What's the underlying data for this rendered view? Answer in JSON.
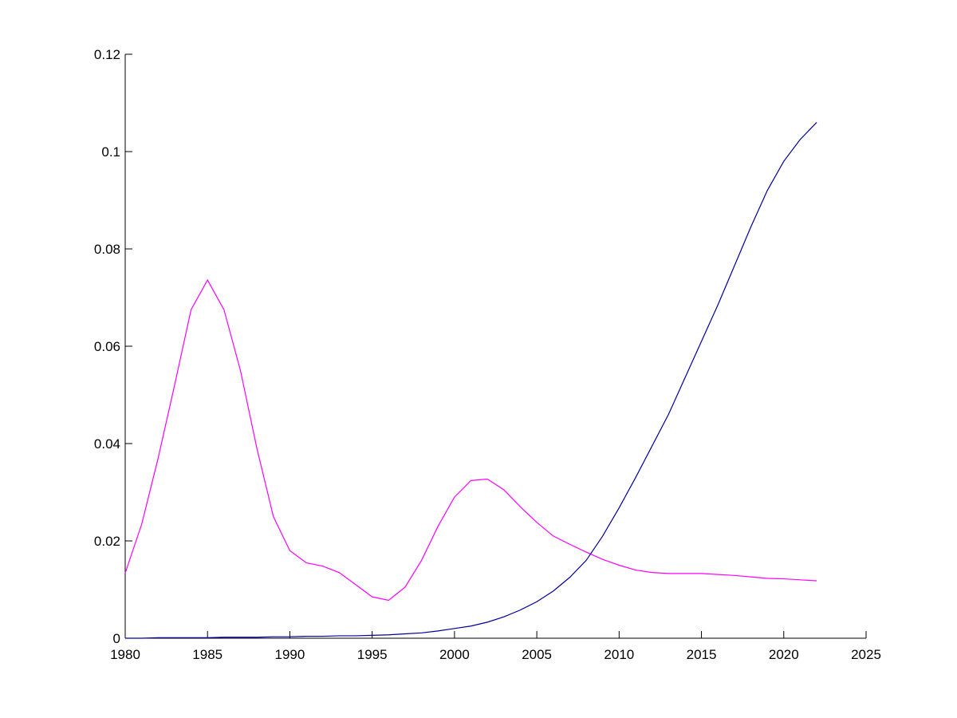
{
  "chart_data": {
    "type": "line",
    "x": [
      1980,
      1981,
      1982,
      1983,
      1984,
      1985,
      1986,
      1987,
      1988,
      1989,
      1990,
      1991,
      1992,
      1993,
      1994,
      1995,
      1996,
      1997,
      1998,
      1999,
      2000,
      2001,
      2002,
      2003,
      2004,
      2005,
      2006,
      2007,
      2008,
      2009,
      2010,
      2011,
      2012,
      2013,
      2014,
      2015,
      2016,
      2017,
      2018,
      2019,
      2020,
      2021,
      2022
    ],
    "series": [
      {
        "color": "#ff00ff",
        "values": [
          0.0134,
          0.0234,
          0.037,
          0.052,
          0.0675,
          0.0736,
          0.0675,
          0.055,
          0.039,
          0.025,
          0.018,
          0.0155,
          0.0148,
          0.0135,
          0.011,
          0.0085,
          0.0078,
          0.0105,
          0.016,
          0.023,
          0.029,
          0.0324,
          0.0327,
          0.0305,
          0.027,
          0.0238,
          0.021,
          0.0193,
          0.0177,
          0.0162,
          0.015,
          0.014,
          0.0135,
          0.0133,
          0.0133,
          0.0133,
          0.0131,
          0.0129,
          0.0126,
          0.0123,
          0.0122,
          0.012,
          0.0118
        ]
      },
      {
        "color": "#00009c",
        "values": [
          0,
          0,
          0.0001,
          0.0001,
          0.0001,
          0.0001,
          0.0002,
          0.0002,
          0.0002,
          0.0003,
          0.0003,
          0.0004,
          0.0004,
          0.0005,
          0.0005,
          0.0006,
          0.0007,
          0.0009,
          0.0011,
          0.0015,
          0.002,
          0.0025,
          0.0033,
          0.0044,
          0.0058,
          0.0075,
          0.0097,
          0.0125,
          0.016,
          0.021,
          0.0268,
          0.033,
          0.0395,
          0.046,
          0.0535,
          0.061,
          0.0685,
          0.0765,
          0.0845,
          0.092,
          0.098,
          0.1025,
          0.106
        ]
      }
    ],
    "xlim": [
      1980,
      2025
    ],
    "xticks": [
      1980,
      1985,
      1990,
      1995,
      2000,
      2005,
      2010,
      2015,
      2020,
      2025
    ],
    "ylim": [
      0,
      0.12
    ],
    "yticks": [
      0,
      0.02,
      0.04,
      0.06,
      0.08,
      0.1,
      0.12
    ],
    "grid": false
  }
}
